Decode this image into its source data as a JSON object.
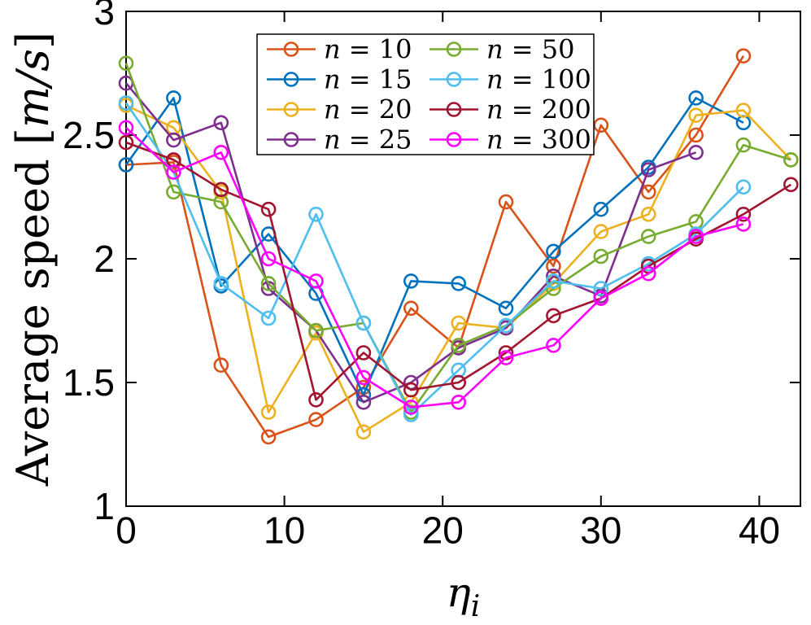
{
  "figure": {
    "background": "#ffffff",
    "axis_color": "#000000",
    "legend_border_color": "#000000"
  },
  "chart_data": {
    "type": "line",
    "title": "",
    "xlabel": "η_i",
    "xlabel_parts": [
      {
        "t": "η",
        "italic": true
      },
      {
        "t": "i",
        "italic": true,
        "sub": true
      }
    ],
    "ylabel": "Average speed [m/s]",
    "ylabel_parts": [
      {
        "t": "Average speed [",
        "italic": false
      },
      {
        "t": "m/s",
        "italic": true
      },
      {
        "t": "]",
        "italic": false
      }
    ],
    "xlim": [
      0,
      42.6
    ],
    "ylim": [
      1,
      3
    ],
    "xticks": [
      0,
      10,
      20,
      30,
      40
    ],
    "xtick_labels": [
      "0",
      "10",
      "20",
      "30",
      "40"
    ],
    "yticks": [
      1,
      1.5,
      2,
      2.5,
      3
    ],
    "ytick_labels": [
      "1",
      "1.5",
      "2",
      "2.5",
      "3"
    ],
    "grid": false,
    "legend_position": "top-center",
    "legend_columns": 2,
    "marker": "circle-open",
    "x": [
      0,
      3,
      6,
      9,
      12,
      15,
      18,
      21,
      24,
      27,
      30,
      33,
      36,
      39,
      42
    ],
    "series": [
      {
        "name": "n = 10",
        "color": "#D95319",
        "values": [
          2.38,
          2.39,
          1.57,
          1.28,
          1.35,
          1.48,
          1.8,
          1.64,
          2.23,
          1.97,
          2.54,
          2.27,
          2.5,
          2.82,
          null
        ]
      },
      {
        "name": "n = 15",
        "color": "#0072BD",
        "values": [
          2.38,
          2.65,
          1.89,
          2.1,
          1.86,
          1.45,
          1.91,
          1.9,
          1.8,
          2.03,
          2.2,
          2.37,
          2.65,
          2.55,
          null
        ]
      },
      {
        "name": "n = 20",
        "color": "#EDB120",
        "values": [
          2.62,
          2.53,
          2.27,
          1.38,
          1.7,
          1.3,
          1.42,
          1.74,
          1.72,
          1.9,
          2.11,
          2.18,
          2.58,
          2.6,
          2.4
        ]
      },
      {
        "name": "n = 25",
        "color": "#7E2F8E",
        "values": [
          2.71,
          2.48,
          2.55,
          1.88,
          1.71,
          1.42,
          1.5,
          1.64,
          1.72,
          1.93,
          1.85,
          2.36,
          2.43,
          null,
          null
        ]
      },
      {
        "name": "n = 50",
        "color": "#77AC30",
        "values": [
          2.79,
          2.27,
          2.23,
          1.9,
          1.71,
          1.74,
          1.38,
          1.65,
          1.73,
          1.88,
          2.01,
          2.09,
          2.15,
          2.46,
          2.4
        ]
      },
      {
        "name": "n = 100",
        "color": "#4DBEEE",
        "values": [
          2.63,
          2.35,
          1.9,
          1.76,
          2.18,
          1.74,
          1.37,
          1.55,
          1.73,
          1.91,
          1.88,
          1.98,
          2.1,
          2.29,
          null
        ]
      },
      {
        "name": "n = 200",
        "color": "#A2142F",
        "values": [
          2.47,
          2.4,
          2.28,
          2.2,
          1.43,
          1.62,
          1.47,
          1.5,
          1.62,
          1.77,
          1.84,
          1.97,
          2.08,
          2.18,
          2.3
        ]
      },
      {
        "name": "n = 300",
        "color": "#FF00FF",
        "values": [
          2.53,
          2.35,
          2.43,
          2.0,
          1.91,
          1.52,
          1.4,
          1.42,
          1.6,
          1.65,
          1.84,
          1.94,
          2.09,
          2.14,
          null
        ]
      }
    ]
  }
}
